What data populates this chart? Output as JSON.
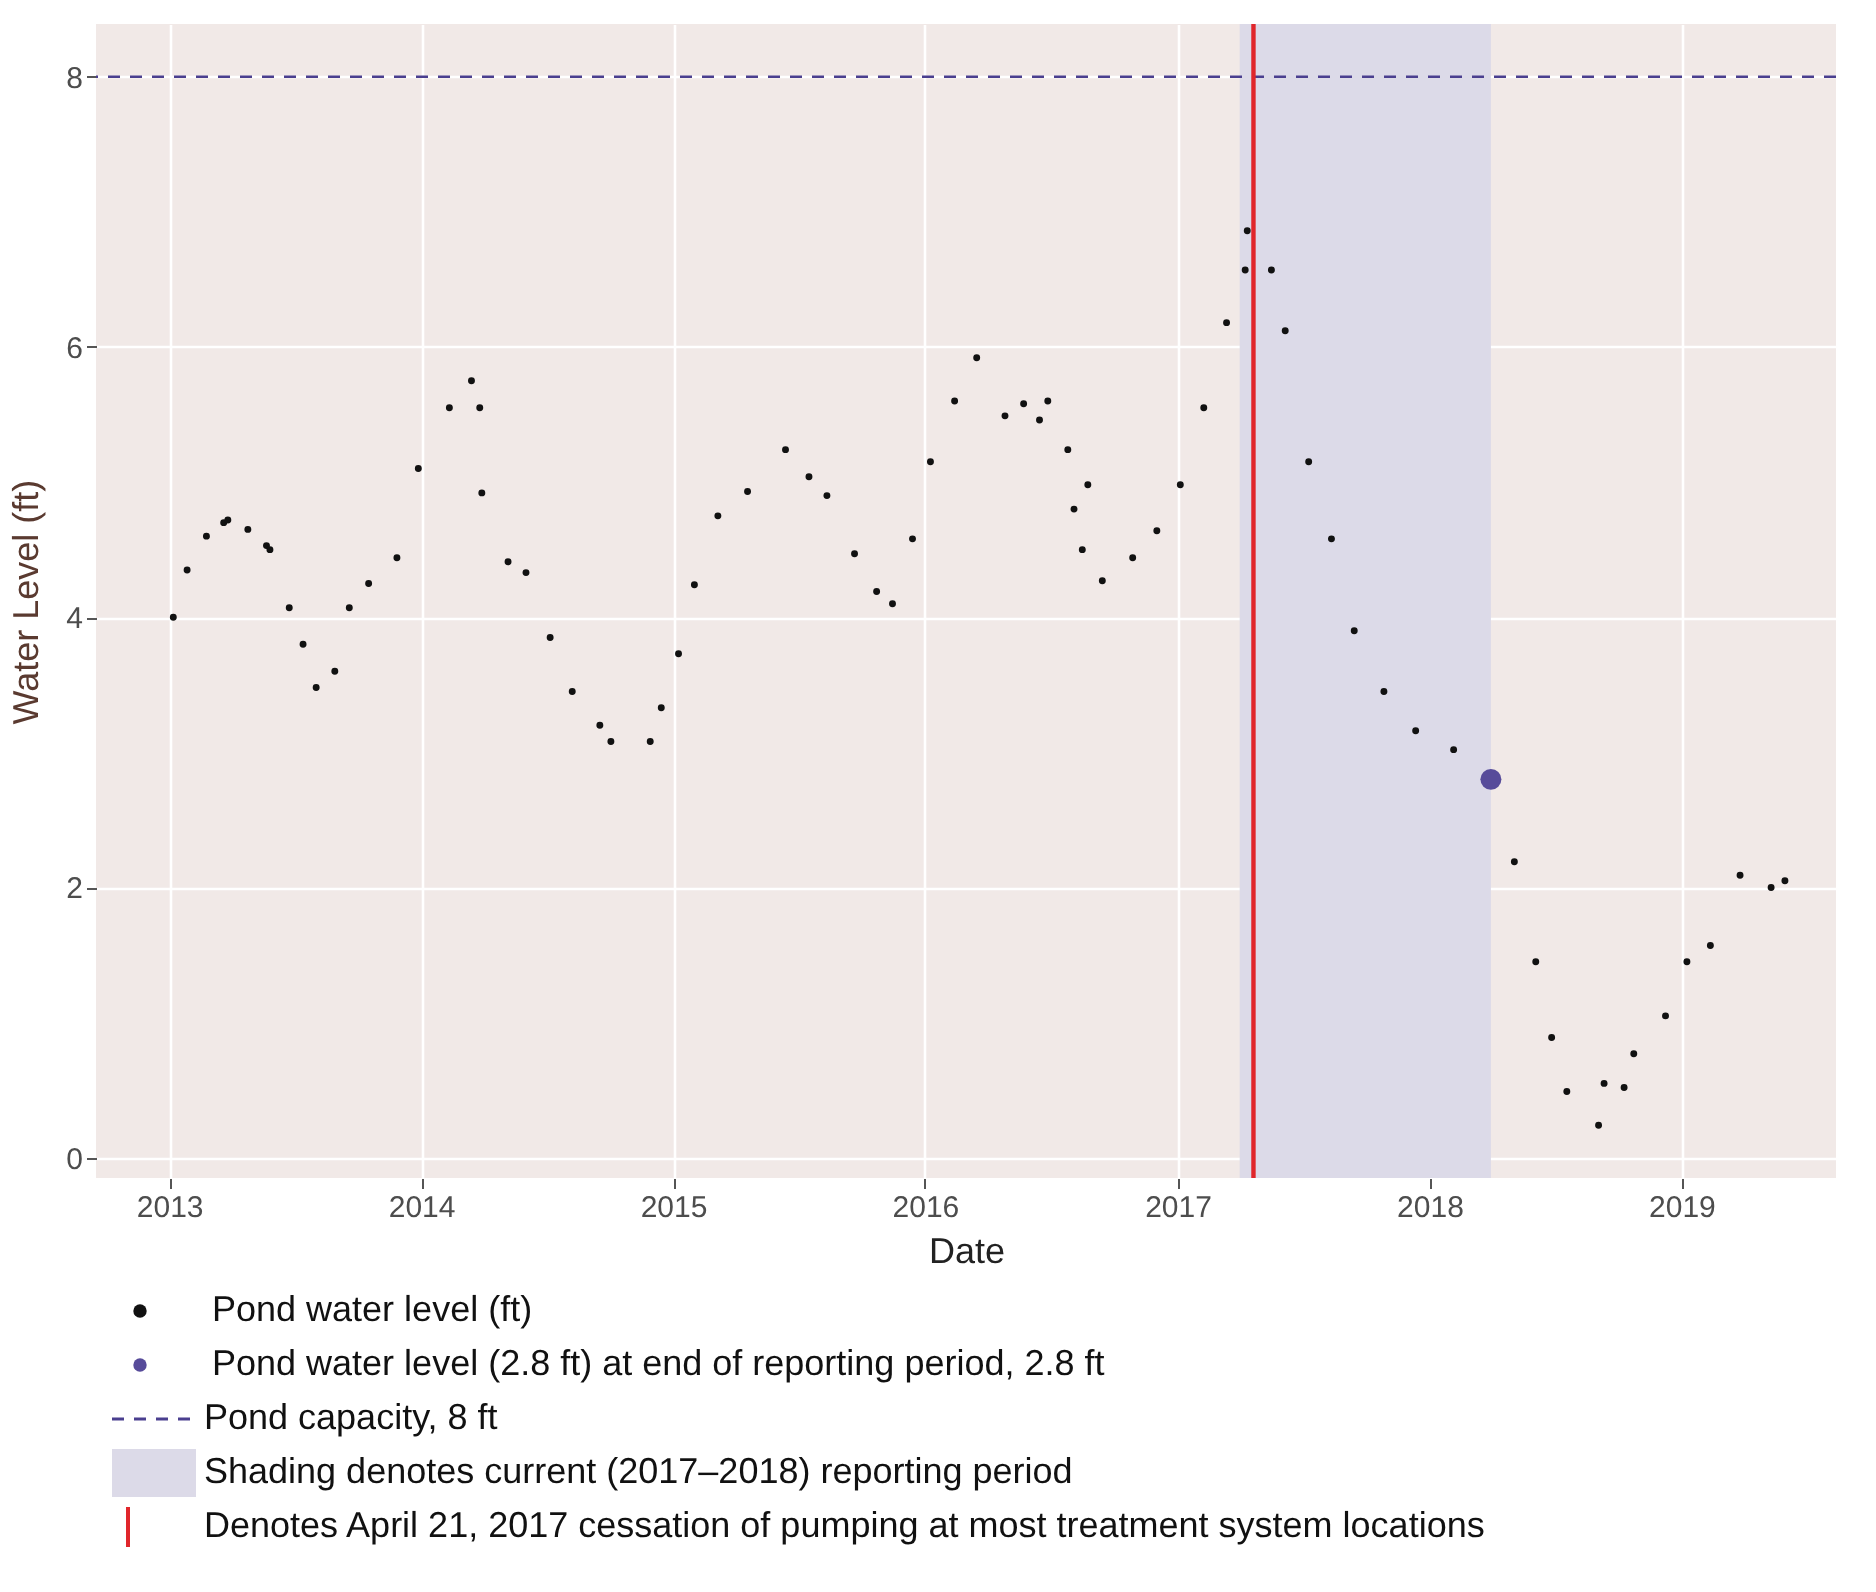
{
  "chart_data": {
    "type": "scatter",
    "xlabel": "Date",
    "ylabel": "Water Level (ft)",
    "xlim": [
      "2012-09-17",
      "2019-08-13"
    ],
    "ylim": [
      -0.15,
      8.39
    ],
    "xticks": [
      {
        "value": "2013-01-01",
        "label": "2013"
      },
      {
        "value": "2014-01-01",
        "label": "2014"
      },
      {
        "value": "2015-01-01",
        "label": "2015"
      },
      {
        "value": "2016-01-01",
        "label": "2016"
      },
      {
        "value": "2017-01-01",
        "label": "2017"
      },
      {
        "value": "2018-01-01",
        "label": "2018"
      },
      {
        "value": "2019-01-01",
        "label": "2019"
      }
    ],
    "yticks": [
      0,
      2,
      4,
      6,
      8
    ],
    "grid": true,
    "marker": "circle",
    "legend": "bottom",
    "series": [
      {
        "name": "Pond water level (ft)",
        "color": "#111111",
        "x": [
          "2013-01-07",
          "2013-01-27",
          "2013-02-24",
          "2013-03-21",
          "2013-03-27",
          "2013-04-25",
          "2013-05-22",
          "2013-05-27",
          "2013-06-24",
          "2013-07-14",
          "2013-08-02",
          "2013-08-29",
          "2013-09-19",
          "2013-10-17",
          "2013-11-27",
          "2013-12-28",
          "2014-02-11",
          "2014-03-15",
          "2014-03-27",
          "2014-03-30",
          "2014-05-07",
          "2014-06-02",
          "2014-07-07",
          "2014-08-08",
          "2014-09-17",
          "2014-10-03",
          "2014-11-29",
          "2014-12-15",
          "2015-01-09",
          "2015-02-01",
          "2015-03-07",
          "2015-04-19",
          "2015-06-13",
          "2015-07-17",
          "2015-08-12",
          "2015-09-21",
          "2015-10-23",
          "2015-11-15",
          "2015-12-14",
          "2016-01-09",
          "2016-02-13",
          "2016-03-16",
          "2016-04-26",
          "2016-05-23",
          "2016-06-15",
          "2016-06-27",
          "2016-07-26",
          "2016-08-04",
          "2016-08-16",
          "2016-08-24",
          "2016-09-14",
          "2016-10-28",
          "2016-12-02",
          "2017-01-05",
          "2017-02-08",
          "2017-03-13",
          "2017-04-09",
          "2017-04-12",
          "2017-05-17",
          "2017-06-06",
          "2017-07-10",
          "2017-08-12",
          "2017-09-14",
          "2017-10-27",
          "2017-12-12",
          "2018-02-05",
          "2018-05-04",
          "2018-06-04",
          "2018-06-27",
          "2018-07-19",
          "2018-09-03",
          "2018-09-11",
          "2018-10-10",
          "2018-10-24",
          "2018-12-09",
          "2019-01-09",
          "2019-02-12",
          "2019-03-27",
          "2019-05-11",
          "2019-05-31"
        ],
        "values": [
          4.0,
          4.35,
          4.6,
          4.7,
          4.72,
          4.65,
          4.53,
          4.5,
          4.07,
          3.8,
          3.48,
          3.6,
          4.07,
          4.25,
          4.44,
          5.1,
          5.55,
          5.75,
          5.55,
          4.92,
          4.41,
          4.33,
          3.85,
          3.45,
          3.2,
          3.08,
          3.08,
          3.33,
          3.73,
          4.24,
          4.75,
          4.93,
          5.24,
          5.04,
          4.9,
          4.47,
          4.19,
          4.1,
          4.58,
          5.15,
          5.6,
          5.92,
          5.49,
          5.58,
          5.46,
          5.6,
          5.24,
          4.8,
          4.5,
          4.98,
          4.27,
          4.44,
          4.64,
          4.98,
          5.55,
          6.18,
          6.57,
          6.86,
          6.57,
          6.12,
          5.15,
          4.58,
          3.9,
          3.45,
          3.16,
          3.02,
          2.19,
          1.45,
          0.89,
          0.49,
          0.24,
          0.55,
          0.52,
          0.77,
          1.05,
          1.45,
          1.57,
          2.09,
          2.0,
          2.05
        ]
      },
      {
        "name": "Pond water level (2.8 ft) at end of reporting period, 2.8 ft",
        "color": "#574b9a",
        "x": [
          "2018-03-31"
        ],
        "values": [
          2.8
        ]
      }
    ],
    "ref_lines": [
      {
        "axis": "y",
        "value": 8,
        "label": "Pond capacity, 8 ft",
        "color": "#4a3f8f",
        "line_style": "dashed"
      },
      {
        "axis": "x",
        "value": "2017-04-21",
        "label": "Denotes April 21, 2017 cessation of pumping at most treatment system locations",
        "color": "#e0262b",
        "line_style": "solid"
      }
    ],
    "bands": [
      {
        "axis": "x",
        "from": "2017-04-01",
        "to": "2018-03-31",
        "label": "Shading denotes current (2017–2018) reporting period",
        "color": "#dcdae8"
      }
    ]
  }
}
